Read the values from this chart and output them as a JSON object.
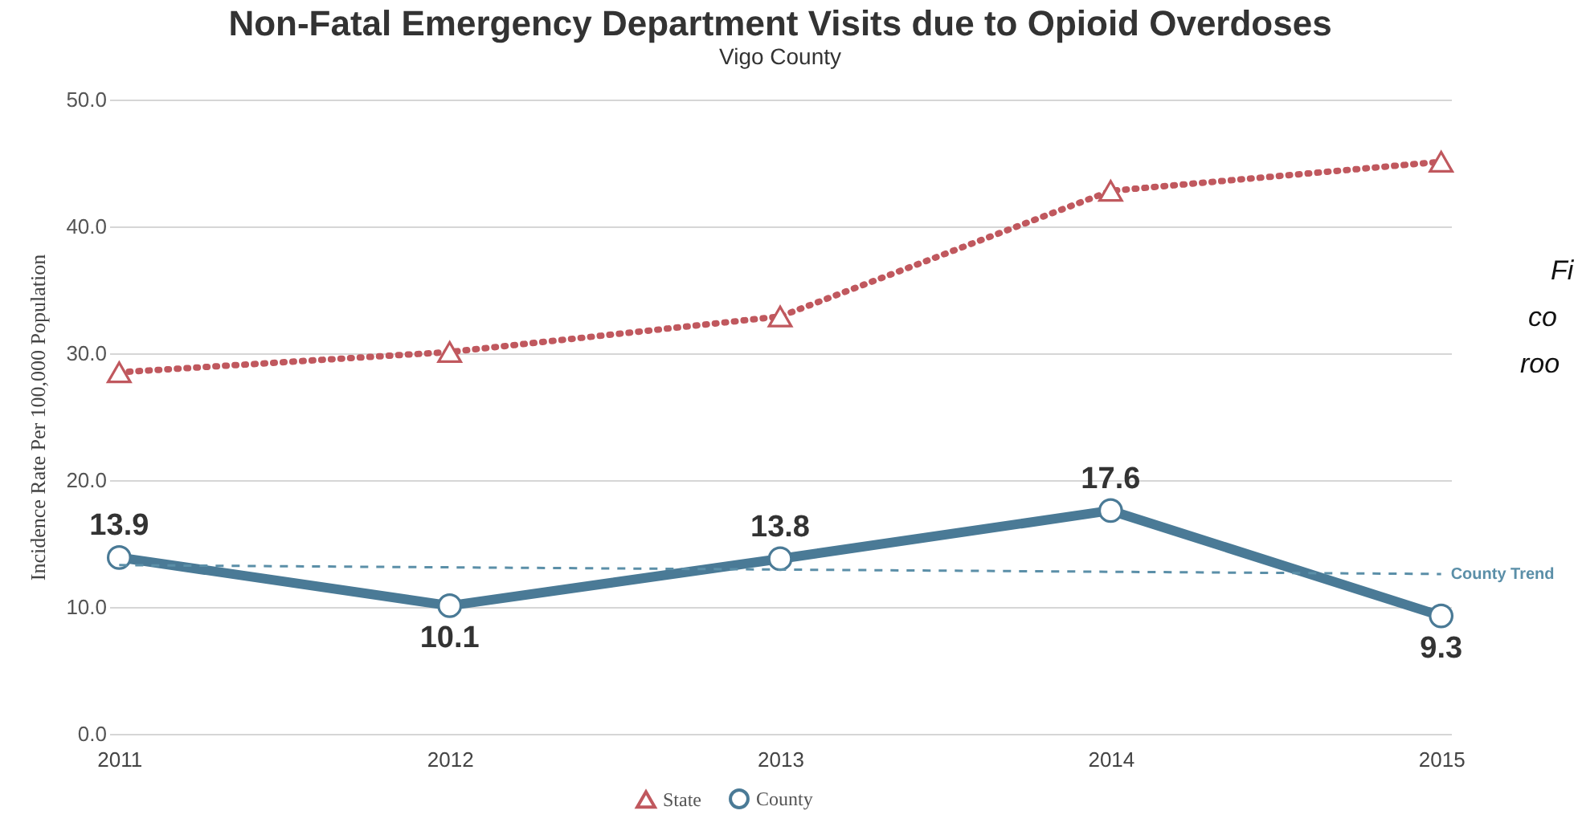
{
  "chart_data": {
    "type": "line",
    "title": "Non-Fatal Emergency Department Visits due to Opioid Overdoses",
    "subtitle": "Vigo County",
    "ylabel": "Incidence Rate Per 100,000 Population",
    "categories": [
      "2011",
      "2012",
      "2013",
      "2014",
      "2015"
    ],
    "ylim": [
      0,
      50
    ],
    "yticks": [
      {
        "value": 0,
        "label": "0.0"
      },
      {
        "value": 10,
        "label": "10.0"
      },
      {
        "value": 20,
        "label": "20.0"
      },
      {
        "value": 30,
        "label": "30.0"
      },
      {
        "value": 40,
        "label": "40.0"
      },
      {
        "value": 50,
        "label": "50.0"
      }
    ],
    "grid": "y",
    "legend": "bottom",
    "series": [
      {
        "name": "State",
        "color": "#c0585e",
        "values": [
          28.5,
          30.1,
          32.9,
          42.8,
          45.1
        ],
        "marker": "triangle",
        "line_style": "dotted"
      },
      {
        "name": "County",
        "color": "#4a7a96",
        "values": [
          13.9,
          10.1,
          13.8,
          17.6,
          9.3
        ],
        "marker": "circle",
        "line_style": "solid",
        "value_labels": [
          "13.9",
          "10.1",
          "13.8",
          "17.6",
          "9.3"
        ]
      },
      {
        "name": "County Trend",
        "color": "#5b8fa8",
        "type": "line",
        "values": [
          13.3,
          null,
          null,
          null,
          12.6
        ],
        "marker": "none",
        "line_style": "dashed"
      }
    ],
    "annotations": [
      "Fi",
      "co",
      "roo"
    ]
  }
}
